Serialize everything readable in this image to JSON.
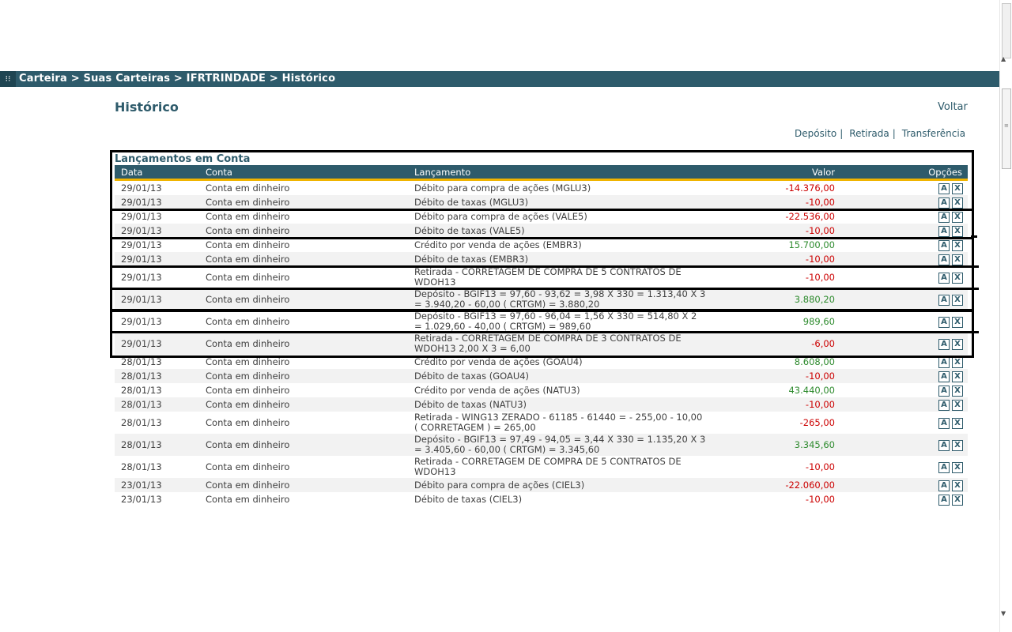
{
  "breadcrumb": {
    "grip_icon": "⁝⁝",
    "text": "Carteira > Suas Carteiras > IFRTRINDADE > Histórico"
  },
  "page": {
    "title": "Histórico",
    "back_label": "Voltar"
  },
  "actions": {
    "deposit": "Depósito",
    "withdraw": "Retirada",
    "transfer": "Transferência",
    "separator": "|"
  },
  "section_title": "Lançamentos em Conta",
  "columns": {
    "date": "Data",
    "account": "Conta",
    "entry": "Lançamento",
    "value": "Valor",
    "options": "Opções"
  },
  "option_icons": {
    "edit": "A",
    "delete": "X"
  },
  "colors": {
    "header": "#2e5b6b",
    "accent": "#f0b400",
    "negative": "#cc0000",
    "positive": "#2e8b2e"
  },
  "rows": [
    {
      "date": "29/01/13",
      "account": "Conta em dinheiro",
      "entry": "Débito para compra de ações (MGLU3)",
      "value": "-14.376,00",
      "sign": "neg"
    },
    {
      "date": "29/01/13",
      "account": "Conta em dinheiro",
      "entry": "Débito de taxas (MGLU3)",
      "value": "-10,00",
      "sign": "neg"
    },
    {
      "date": "29/01/13",
      "account": "Conta em dinheiro",
      "entry": "Débito para compra de ações (VALE5)",
      "value": "-22.536,00",
      "sign": "neg"
    },
    {
      "date": "29/01/13",
      "account": "Conta em dinheiro",
      "entry": "Débito de taxas (VALE5)",
      "value": "-10,00",
      "sign": "neg"
    },
    {
      "date": "29/01/13",
      "account": "Conta em dinheiro",
      "entry": "Crédito por venda de ações (EMBR3)",
      "value": "15.700,00",
      "sign": "pos"
    },
    {
      "date": "29/01/13",
      "account": "Conta em dinheiro",
      "entry": "Débito de taxas (EMBR3)",
      "value": "-10,00",
      "sign": "neg"
    },
    {
      "date": "29/01/13",
      "account": "Conta em dinheiro",
      "entry": "Retirada - CORRETAGEM DE COMPRA DE 5 CONTRATOS DE WDOH13",
      "value": "-10,00",
      "sign": "neg"
    },
    {
      "date": "29/01/13",
      "account": "Conta em dinheiro",
      "entry": "Depósito - BGIF13 = 97,60 - 93,62 = 3,98 X 330 = 1.313,40 X 3 = 3.940,20 - 60,00 ( CRTGM) = 3.880,20",
      "value": "3.880,20",
      "sign": "pos"
    },
    {
      "date": "29/01/13",
      "account": "Conta em dinheiro",
      "entry": "Depósito - BGIF13 = 97,60 - 96,04 = 1,56 X 330 = 514,80 X 2 = 1.029,60 - 40,00 ( CRTGM) = 989,60",
      "value": "989,60",
      "sign": "pos"
    },
    {
      "date": "29/01/13",
      "account": "Conta em dinheiro",
      "entry": "Retirada - CORRETAGEM DE COMPRA DE 3 CONTRATOS DE WDOH13 2,00 X 3 = 6,00",
      "value": "-6,00",
      "sign": "neg"
    },
    {
      "date": "28/01/13",
      "account": "Conta em dinheiro",
      "entry": "Crédito por venda de ações (GOAU4)",
      "value": "8.608,00",
      "sign": "pos"
    },
    {
      "date": "28/01/13",
      "account": "Conta em dinheiro",
      "entry": "Débito de taxas (GOAU4)",
      "value": "-10,00",
      "sign": "neg"
    },
    {
      "date": "28/01/13",
      "account": "Conta em dinheiro",
      "entry": "Crédito por venda de ações (NATU3)",
      "value": "43.440,00",
      "sign": "pos"
    },
    {
      "date": "28/01/13",
      "account": "Conta em dinheiro",
      "entry": "Débito de taxas (NATU3)",
      "value": "-10,00",
      "sign": "neg"
    },
    {
      "date": "28/01/13",
      "account": "Conta em dinheiro",
      "entry": "Retirada - WING13 ZERADO - 61185 - 61440 = - 255,00 - 10,00 ( CORRETAGEM ) = 265,00",
      "value": "-265,00",
      "sign": "neg"
    },
    {
      "date": "28/01/13",
      "account": "Conta em dinheiro",
      "entry": "Depósito - BGIF13 = 97,49 - 94,05 = 3,44 X 330 = 1.135,20 X 3 = 3.405,60 - 60,00 ( CRTGM) = 3.345,60",
      "value": "3.345,60",
      "sign": "pos"
    },
    {
      "date": "28/01/13",
      "account": "Conta em dinheiro",
      "entry": "Retirada - CORRETAGEM DE COMPRA DE 5 CONTRATOS DE WDOH13",
      "value": "-10,00",
      "sign": "neg"
    },
    {
      "date": "23/01/13",
      "account": "Conta em dinheiro",
      "entry": "Débito para compra de ações (CIEL3)",
      "value": "-22.060,00",
      "sign": "neg"
    },
    {
      "date": "23/01/13",
      "account": "Conta em dinheiro",
      "entry": "Débito de taxas (CIEL3)",
      "value": "-10,00",
      "sign": "neg"
    }
  ]
}
